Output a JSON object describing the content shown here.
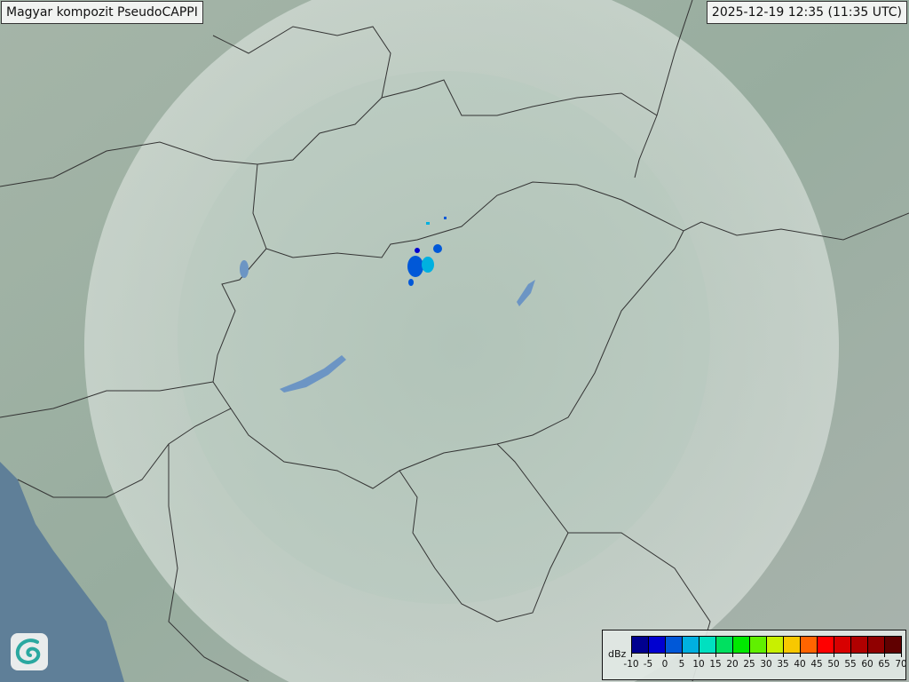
{
  "header": {
    "title": "Magyar kompozit  PseudoCAPPI",
    "timestamp": "2025-12-19 12:35 (11:35 UTC)"
  },
  "map": {
    "logo": "omsz-swirl-logo",
    "colors": {
      "land": "#9fb0a6",
      "coverage": "#c9d8cf",
      "sea": "#5f7f98",
      "border": "#333333",
      "water": "#6c95c4"
    }
  },
  "legend": {
    "unit": "dBz",
    "labels": [
      "-10",
      "-5",
      "0",
      "5",
      "10",
      "15",
      "20",
      "25",
      "30",
      "35",
      "40",
      "45",
      "50",
      "55",
      "60",
      "65",
      "70"
    ],
    "colors": [
      "#00008f",
      "#0000d0",
      "#0058d8",
      "#00b0e0",
      "#00e0c0",
      "#00e060",
      "#00e800",
      "#60f000",
      "#c8f000",
      "#f8c800",
      "#ff6400",
      "#ff0000",
      "#d80000",
      "#b00000",
      "#900000",
      "#600000"
    ]
  }
}
